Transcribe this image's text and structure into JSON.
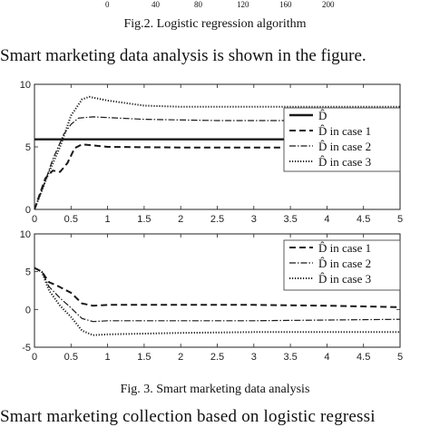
{
  "top_axis": {
    "ticks": [
      "0",
      "40",
      "80",
      "120",
      "160",
      "200"
    ]
  },
  "fig2_caption": "Fig.2.  Logistic regression algorithm",
  "paragraph1": "Smart marketing data analysis is shown in the figure.",
  "fig3_caption": "Fig. 3.  Smart marketing data analysis",
  "paragraph2": "Smart  marketing  collection  based  on  logistic  regressi",
  "chart_data": [
    {
      "type": "line",
      "xlim": [
        0,
        5
      ],
      "ylim": [
        0,
        10
      ],
      "xticks": [
        "0",
        "0.5",
        "1",
        "1.5",
        "2",
        "2.5",
        "3",
        "3.5",
        "4",
        "4.5",
        "5"
      ],
      "yticks": [
        "0",
        "5",
        "10"
      ],
      "legend_position": "right",
      "series": [
        {
          "name": "D̂",
          "style": "solid",
          "points": [
            [
              0,
              5.6
            ],
            [
              5,
              5.6
            ]
          ]
        },
        {
          "name": "D̂ in case 1",
          "style": "dashed",
          "points": [
            [
              0,
              0
            ],
            [
              0.15,
              2.5
            ],
            [
              0.25,
              3.1
            ],
            [
              0.35,
              3.0
            ],
            [
              0.45,
              3.7
            ],
            [
              0.55,
              4.9
            ],
            [
              0.65,
              5.2
            ],
            [
              1,
              5.0
            ],
            [
              2,
              4.95
            ],
            [
              3,
              4.95
            ],
            [
              4,
              4.95
            ],
            [
              5,
              4.95
            ]
          ]
        },
        {
          "name": "D̂ in case 2",
          "style": "dash-dot",
          "points": [
            [
              0,
              0
            ],
            [
              0.1,
              1.5
            ],
            [
              0.25,
              4.0
            ],
            [
              0.4,
              6.0
            ],
            [
              0.5,
              6.8
            ],
            [
              0.6,
              7.3
            ],
            [
              0.8,
              7.4
            ],
            [
              1.5,
              7.2
            ],
            [
              2.5,
              7.1
            ],
            [
              3.5,
              7.1
            ],
            [
              4.5,
              7.2
            ],
            [
              5,
              7.4
            ]
          ]
        },
        {
          "name": "D̂ in case 3",
          "style": "dotted",
          "points": [
            [
              0,
              0
            ],
            [
              0.1,
              1.5
            ],
            [
              0.2,
              3.0
            ],
            [
              0.35,
              5.0
            ],
            [
              0.5,
              7.5
            ],
            [
              0.65,
              8.8
            ],
            [
              0.75,
              9.0
            ],
            [
              1,
              8.7
            ],
            [
              1.5,
              8.3
            ],
            [
              2,
              8.2
            ],
            [
              3,
              8.2
            ],
            [
              4,
              8.2
            ],
            [
              5,
              8.2
            ]
          ]
        }
      ]
    },
    {
      "type": "line",
      "xlim": [
        0,
        5
      ],
      "ylim": [
        -5,
        10
      ],
      "xticks": [
        "0",
        "0.5",
        "1",
        "1.5",
        "2",
        "2.5",
        "3",
        "3.5",
        "4",
        "4.5",
        "5"
      ],
      "yticks": [
        "-5",
        "0",
        "5",
        "10"
      ],
      "legend_position": "top-right",
      "series": [
        {
          "name": "D̂ in case 1",
          "style": "dashed",
          "points": [
            [
              0,
              5.5
            ],
            [
              0.1,
              5.0
            ],
            [
              0.2,
              3.6
            ],
            [
              0.3,
              3.2
            ],
            [
              0.4,
              2.7
            ],
            [
              0.5,
              2.2
            ],
            [
              0.65,
              0.8
            ],
            [
              0.8,
              0.5
            ],
            [
              1,
              0.6
            ],
            [
              2,
              0.6
            ],
            [
              3,
              0.6
            ],
            [
              4,
              0.5
            ],
            [
              5,
              0.3
            ]
          ]
        },
        {
          "name": "D̂ in case 2",
          "style": "dash-dot",
          "points": [
            [
              0,
              5.5
            ],
            [
              0.1,
              5.0
            ],
            [
              0.2,
              3.0
            ],
            [
              0.35,
              1.5
            ],
            [
              0.5,
              0.2
            ],
            [
              0.65,
              -1.2
            ],
            [
              0.8,
              -1.6
            ],
            [
              1,
              -1.5
            ],
            [
              2,
              -1.5
            ],
            [
              3,
              -1.5
            ],
            [
              4,
              -1.4
            ],
            [
              5,
              -1.3
            ]
          ]
        },
        {
          "name": "D̂ in case 3",
          "style": "dotted",
          "points": [
            [
              0,
              5.5
            ],
            [
              0.1,
              5.0
            ],
            [
              0.2,
              2.5
            ],
            [
              0.35,
              0.5
            ],
            [
              0.5,
              -1.0
            ],
            [
              0.65,
              -2.8
            ],
            [
              0.8,
              -3.4
            ],
            [
              1,
              -3.3
            ],
            [
              2,
              -3.1
            ],
            [
              3,
              -3.0
            ],
            [
              4,
              -3.0
            ],
            [
              5,
              -3.0
            ]
          ]
        }
      ]
    }
  ]
}
